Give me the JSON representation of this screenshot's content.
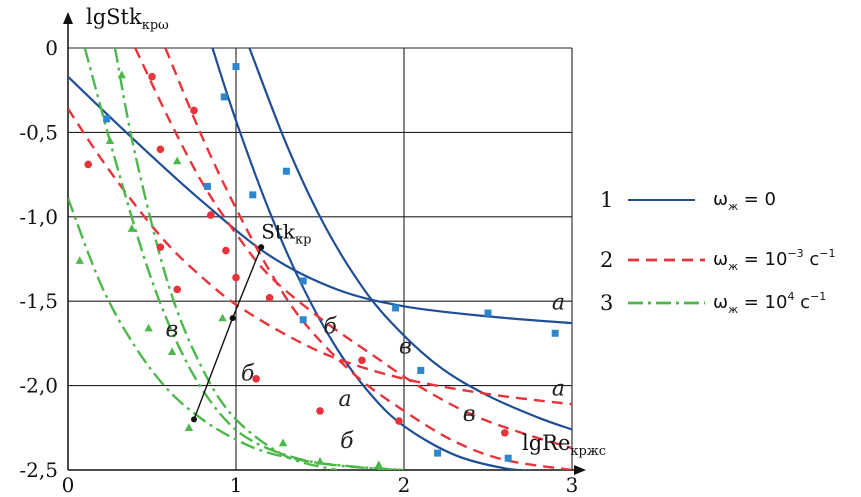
{
  "chart_data": {
    "type": "line",
    "title": "",
    "ylabel": "lgStk",
    "ylabel_sub": "крω",
    "xlabel": "lgRe",
    "xlabel_sub": "кржс",
    "xlim": [
      0,
      3
    ],
    "ylim": [
      -2.5,
      0
    ],
    "grid": true,
    "x_ticks": [
      "0",
      "1",
      "2",
      "3"
    ],
    "y_ticks": [
      "0",
      "-0,5",
      "-1,0",
      "-1,5",
      "-2,0",
      "-2,5"
    ],
    "legend_position": "right",
    "legend": [
      {
        "num": "1",
        "label": "ω",
        "sub": "ж",
        "value": " = 0",
        "sup": "",
        "unit": ""
      },
      {
        "num": "2",
        "label": "ω",
        "sub": "ж",
        "value": " = 10",
        "sup": "−3",
        "unit": " с",
        "unit_sup": "−1"
      },
      {
        "num": "3",
        "label": "ω",
        "sub": "ж",
        "value": "  = 10",
        "sup": "4",
        "unit": " с",
        "unit_sup": "−1"
      }
    ],
    "annotations": [
      {
        "text": "Stk",
        "sub": "кр",
        "x": 1.15,
        "y": -1.13
      },
      {
        "text": "а",
        "x": 2.88,
        "y": -1.55,
        "color": "#222222"
      },
      {
        "text": "в",
        "x": 1.97,
        "y": -1.81,
        "color": "#222222"
      },
      {
        "text": "б",
        "x": 1.52,
        "y": -1.69,
        "color": "#222222"
      },
      {
        "text": "а",
        "x": 2.88,
        "y": -2.06,
        "color": "#222222"
      },
      {
        "text": "в",
        "x": 2.35,
        "y": -2.21,
        "color": "#222222"
      },
      {
        "text": "б",
        "x": 1.03,
        "y": -1.97,
        "color": "#222222"
      },
      {
        "text": "в",
        "x": 0.58,
        "y": -1.71,
        "color": "#222222"
      },
      {
        "text": "а",
        "x": 1.61,
        "y": -2.12,
        "color": "#222222"
      },
      {
        "text": "б",
        "x": 1.62,
        "y": -2.37,
        "color": "#222222"
      }
    ],
    "series": [
      {
        "curve": "1a",
        "style": 1,
        "x": [
          0,
          0.4,
          0.8,
          1.2,
          1.6,
          2.0,
          2.5,
          3.0
        ],
        "y": [
          -0.17,
          -0.55,
          -0.91,
          -1.23,
          -1.43,
          -1.53,
          -1.59,
          -1.63
        ]
      },
      {
        "curve": "1b",
        "style": 1,
        "x": [
          0.86,
          1.0,
          1.2,
          1.4,
          1.6,
          1.8,
          2.0,
          2.3,
          2.6,
          2.85
        ],
        "y": [
          0,
          -0.43,
          -0.97,
          -1.42,
          -1.78,
          -2.05,
          -2.24,
          -2.41,
          -2.49,
          -2.51
        ]
      },
      {
        "curve": "1c",
        "style": 1,
        "x": [
          1.08,
          1.3,
          1.5,
          1.7,
          1.9,
          2.2,
          2.5,
          2.8,
          3.0
        ],
        "y": [
          0,
          -0.57,
          -1.0,
          -1.34,
          -1.6,
          -1.88,
          -2.06,
          -2.19,
          -2.26
        ]
      },
      {
        "curve": "2a",
        "style": 2,
        "x": [
          0,
          0.2,
          0.4,
          0.6,
          0.8,
          1.0,
          1.3,
          1.6,
          2.0,
          2.5,
          3.0
        ],
        "y": [
          -0.36,
          -0.66,
          -0.93,
          -1.17,
          -1.36,
          -1.52,
          -1.7,
          -1.84,
          -1.96,
          -2.05,
          -2.11
        ]
      },
      {
        "curve": "2b",
        "style": 2,
        "x": [
          0.4,
          0.6,
          0.8,
          1.0,
          1.2,
          1.5,
          1.8,
          2.1,
          2.4,
          2.7,
          3.0
        ],
        "y": [
          0,
          -0.42,
          -0.8,
          -1.1,
          -1.35,
          -1.6,
          -1.81,
          -2.01,
          -2.17,
          -2.28,
          -2.37
        ]
      },
      {
        "curve": "2c",
        "style": 2,
        "x": [
          0.58,
          0.8,
          1.0,
          1.2,
          1.4,
          1.7,
          2.0,
          2.3,
          2.6,
          3.0
        ],
        "y": [
          0,
          -0.53,
          -0.95,
          -1.32,
          -1.62,
          -1.93,
          -2.15,
          -2.33,
          -2.44,
          -2.5
        ]
      },
      {
        "curve": "3a",
        "style": 3,
        "x": [
          0,
          0.2,
          0.4,
          0.6,
          0.8,
          1.0,
          1.2,
          1.5,
          1.8,
          2.0
        ],
        "y": [
          -0.89,
          -1.41,
          -1.77,
          -2.03,
          -2.2,
          -2.32,
          -2.4,
          -2.46,
          -2.49,
          -2.5
        ]
      },
      {
        "curve": "3b",
        "style": 3,
        "x": [
          0.1,
          0.3,
          0.5,
          0.7,
          0.9,
          1.1,
          1.4,
          1.7,
          2.0
        ],
        "y": [
          0,
          -0.73,
          -1.38,
          -1.85,
          -2.16,
          -2.33,
          -2.44,
          -2.48,
          -2.5
        ]
      },
      {
        "curve": "3c",
        "style": 3,
        "x": [
          0.28,
          0.4,
          0.6,
          0.8,
          1.0,
          1.3,
          1.6
        ],
        "y": [
          0,
          -0.63,
          -1.41,
          -1.9,
          -2.2,
          -2.42,
          -2.5
        ]
      },
      {
        "curve": "Stk-kr",
        "style": 0,
        "x": [
          0.75,
          0.98,
          1.15
        ],
        "y": [
          -2.2,
          -1.6,
          -1.18
        ]
      }
    ],
    "markers": [
      {
        "style": 1,
        "points": [
          [
            0.23,
            -0.42
          ],
          [
            0.83,
            -0.82
          ],
          [
            0.93,
            -0.29
          ],
          [
            1.0,
            -0.11
          ],
          [
            1.1,
            -0.87
          ],
          [
            1.3,
            -0.73
          ],
          [
            1.4,
            -1.38
          ],
          [
            1.4,
            -1.61
          ],
          [
            1.95,
            -1.54
          ],
          [
            2.1,
            -1.91
          ],
          [
            2.2,
            -2.4
          ],
          [
            2.5,
            -1.57
          ],
          [
            2.62,
            -2.43
          ],
          [
            2.9,
            -1.69
          ]
        ]
      },
      {
        "style": 2,
        "points": [
          [
            0.12,
            -0.69
          ],
          [
            0.5,
            -0.17
          ],
          [
            0.55,
            -0.6
          ],
          [
            0.55,
            -1.18
          ],
          [
            0.65,
            -1.43
          ],
          [
            0.75,
            -0.37
          ],
          [
            0.85,
            -0.99
          ],
          [
            0.94,
            -1.2
          ],
          [
            1.0,
            -1.36
          ],
          [
            1.12,
            -1.96
          ],
          [
            1.2,
            -1.48
          ],
          [
            1.5,
            -2.15
          ],
          [
            1.75,
            -1.85
          ],
          [
            1.97,
            -2.21
          ],
          [
            2.6,
            -2.28
          ]
        ]
      },
      {
        "style": 3,
        "points": [
          [
            0.07,
            -1.26
          ],
          [
            0.25,
            -0.55
          ],
          [
            0.32,
            -0.16
          ],
          [
            0.38,
            -1.07
          ],
          [
            0.48,
            -1.66
          ],
          [
            0.62,
            -1.8
          ],
          [
            0.65,
            -0.67
          ],
          [
            0.72,
            -2.25
          ],
          [
            0.92,
            -1.6
          ],
          [
            1.28,
            -2.34
          ],
          [
            1.5,
            -2.45
          ],
          [
            1.85,
            -2.47
          ]
        ]
      },
      {
        "style": 0,
        "points": [
          [
            0.75,
            -2.2
          ],
          [
            0.98,
            -1.6
          ],
          [
            1.15,
            -1.18
          ]
        ]
      }
    ],
    "styles": {
      "0": {
        "color": "#111111",
        "dash": "",
        "width": 1.4
      },
      "1": {
        "color": "#1f4e96",
        "dash": "",
        "width": 2.2,
        "marker_color": "#2e86cc"
      },
      "2": {
        "color": "#e8333a",
        "dash": "11 7",
        "width": 2.4,
        "marker_color": "#e8333a"
      },
      "3": {
        "color": "#4cb84a",
        "dash": "15 5 3 5",
        "width": 2.4,
        "marker_color": "#4cb84a"
      }
    }
  }
}
